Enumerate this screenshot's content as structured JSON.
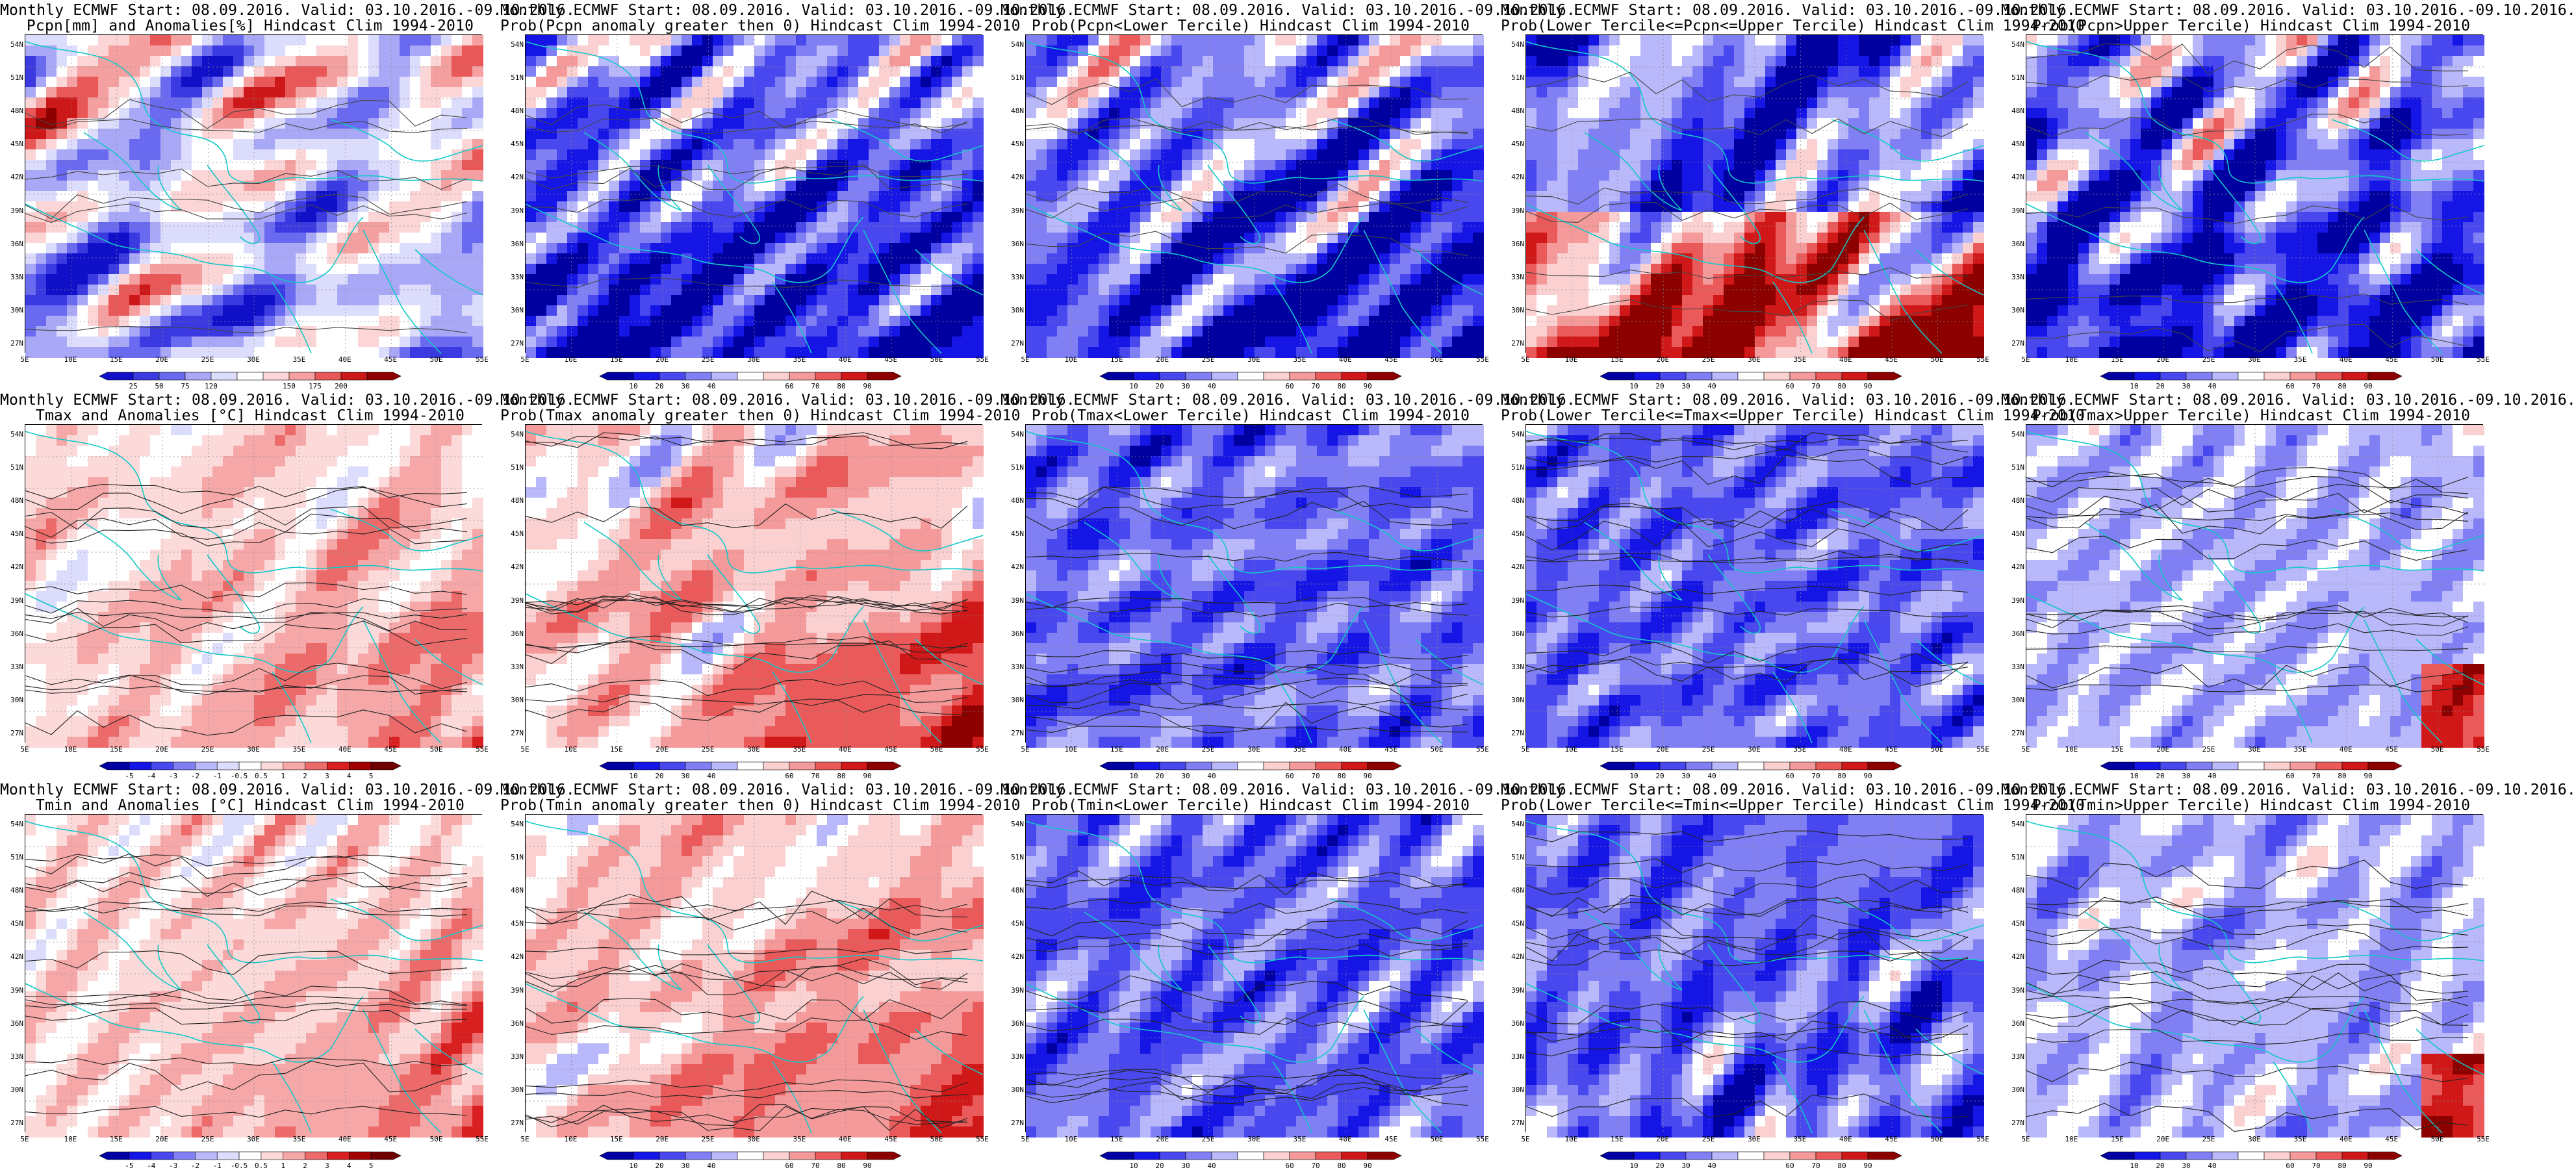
{
  "header_prefix": "Monthly ECMWF Start: 08.09.2016. Valid: 03.10.2016.-09.10.2016.",
  "header_prefix_short": "Monthly ECMWF Start: 08.09.2016. Valid: 03.10.2016.-09.10.2016.",
  "panels": [
    {
      "title1": "Monthly ECMWF Start: 08.09.2016. Valid: 03.10.2016.-09.10.2016.",
      "title2": "Pcpn[mm] and Anomalies[%] Hindcast Clim 1994-2010",
      "scale": "precip",
      "field": "pcpn-anom",
      "contours": "cyan-light"
    },
    {
      "title1": "Monthly ECMWF Start: 08.09.2016. Valid: 03.10.2016.-09.10.2016.",
      "title2": "Prob(Pcpn anomaly greater then 0) Hindcast Clim 1994-2010",
      "scale": "prob",
      "field": "pcpn-prob-pos",
      "contours": "cyan-light"
    },
    {
      "title1": "Monthly ECMWF Start: 08.09.2016. Valid: 03.10.2016.-09.10.2016.",
      "title2": "Prob(Pcpn<Lower Tercile) Hindcast Clim 1994-2010",
      "scale": "prob",
      "field": "pcpn-lower",
      "contours": "cyan-light"
    },
    {
      "title1": "Monthly ECMWF Start: 08.09.2016. Valid: 03.10.2016.-09.10.2016.",
      "title2": "Prob(Lower Tercile<=Pcpn<=Upper Tercile) Hindcast Clim 1994-2010",
      "scale": "prob",
      "field": "pcpn-mid",
      "contours": "cyan-light"
    },
    {
      "title1": "Monthly ECMWF Start: 08.09.2016. Valid: 03.10.2016.-09.10.2016.",
      "title2": "Prob(Pcpn>Upper Tercile) Hindcast Clim 1994-2010",
      "scale": "prob",
      "field": "pcpn-upper",
      "contours": "cyan-light"
    },
    {
      "title1": "Monthly ECMWF Start: 08.09.2016. Valid: 03.10.2016.-09.10.2016.",
      "title2": "Tmax and Anomalies [°C] Hindcast Clim 1994-2010",
      "scale": "anom",
      "field": "tmax-anom",
      "contours": "black"
    },
    {
      "title1": "Monthly ECMWF Start: 08.09.2016. Valid: 03.10.2016.-09.10.2016.",
      "title2": "Prob(Tmax anomaly greater then 0) Hindcast Clim 1994-2010",
      "scale": "prob",
      "field": "tmax-prob-pos",
      "contours": "black"
    },
    {
      "title1": "Monthly ECMWF Start: 08.09.2016. Valid: 03.10.2016.-09.10.2016.",
      "title2": "Prob(Tmax<Lower Tercile) Hindcast Clim 1994-2010",
      "scale": "prob",
      "field": "tmax-lower",
      "contours": "black"
    },
    {
      "title1": "Monthly ECMWF Start: 08.09.2016. Valid: 03.10.2016.-09.10.2016.",
      "title2": "Prob(Lower Tercile<=Tmax<=Upper Tercile) Hindcast Clim 1994-2010",
      "scale": "prob",
      "field": "tmax-mid",
      "contours": "black"
    },
    {
      "title1": "Monthly ECMWF Start: 08.09.2016. Valid: 03.10.2016.-09.10.2016.",
      "title2": "Prob(Tmax>Upper Tercile) Hindcast Clim 1994-2010",
      "scale": "prob",
      "field": "tmax-upper",
      "contours": "black"
    },
    {
      "title1": "Monthly ECMWF Start: 08.09.2016. Valid: 03.10.2016.-09.10.2016.",
      "title2": "Tmin and Anomalies [°C] Hindcast Clim 1994-2010",
      "scale": "anom",
      "field": "tmin-anom",
      "contours": "black"
    },
    {
      "title1": "Monthly ECMWF Start: 08.09.2016. Valid: 03.10.2016.-09.10.2016.",
      "title2": "Prob(Tmin anomaly greater then 0) Hindcast Clim 1994-2010",
      "scale": "prob",
      "field": "tmin-prob-pos",
      "contours": "black"
    },
    {
      "title1": "Monthly ECMWF Start: 08.09.2016. Valid: 03.10.2016.-09.10.2016.",
      "title2": "Prob(Tmin<Lower Tercile) Hindcast Clim 1994-2010",
      "scale": "prob",
      "field": "tmin-lower",
      "contours": "black"
    },
    {
      "title1": "Monthly ECMWF Start: 08.09.2016. Valid: 03.10.2016.-09.10.2016.",
      "title2": "Prob(Lower Tercile<=Tmin<=Upper Tercile) Hindcast Clim 1994-2010",
      "scale": "prob",
      "field": "tmin-mid",
      "contours": "black"
    },
    {
      "title1": "Monthly ECMWF Start: 08.09.2016. Valid: 03.10.2016.-09.10.2016.",
      "title2": "Prob(Tmin>Upper Tercile) Hindcast Clim 1994-2010",
      "scale": "prob",
      "field": "tmin-upper",
      "contours": "black"
    }
  ],
  "lat_labels": [
    "54N",
    "51N",
    "48N",
    "45N",
    "42N",
    "39N",
    "36N",
    "33N",
    "30N",
    "27N"
  ],
  "lon_labels": [
    "5E",
    "10E",
    "15E",
    "20E",
    "25E",
    "30E",
    "35E",
    "40E",
    "45E",
    "50E",
    "55E"
  ],
  "scales": {
    "precip": {
      "labels": [
        "25",
        "50",
        "75",
        "120",
        "150",
        "175",
        "200"
      ],
      "colors": [
        "#1010c8",
        "#3a3ae0",
        "#6a6af0",
        "#a8a8f6",
        "#dcdcfc",
        "#ffffff",
        "#fcd6d6",
        "#f4a0a0",
        "#e85858",
        "#cc1818",
        "#8c0000"
      ]
    },
    "prob": {
      "labels": [
        "10",
        "20",
        "30",
        "40",
        "60",
        "70",
        "80",
        "90"
      ],
      "colors": [
        "#0000a0",
        "#1515e6",
        "#4848ee",
        "#8080f4",
        "#b8b8fa",
        "#ffffff",
        "#fad0d0",
        "#f49a9a",
        "#ea5a5a",
        "#d01818",
        "#8c0000"
      ]
    },
    "anom": {
      "labels": [
        "-5",
        "-4",
        "-3",
        "-2",
        "-1",
        "-0.5",
        "0.5",
        "1",
        "2",
        "3",
        "4",
        "5"
      ],
      "colors": [
        "#0000a0",
        "#1515e6",
        "#4848ee",
        "#8080f4",
        "#b8b8fa",
        "#dcdcfc",
        "#ffffff",
        "#fcdada",
        "#f6a8a8",
        "#ec6a6a",
        "#d82020",
        "#a00000",
        "#700000"
      ]
    }
  }
}
